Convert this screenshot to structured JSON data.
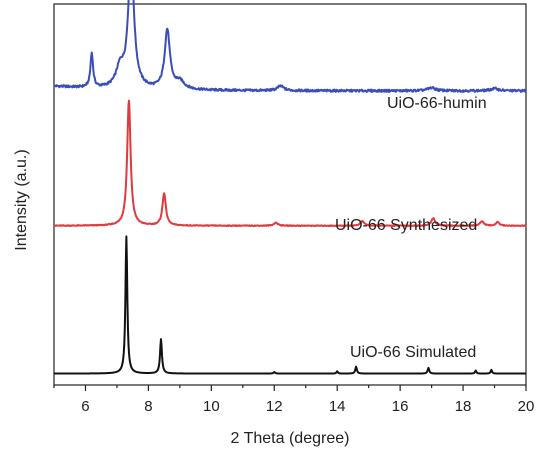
{
  "chart_data": {
    "type": "line",
    "title": "",
    "xlabel": "2 Theta (degree)",
    "ylabel": "Intensity (a.u.)",
    "xlim": [
      5,
      20
    ],
    "x_ticks": [
      "6",
      "8",
      "10",
      "12",
      "14",
      "16",
      "18",
      "20"
    ],
    "y_ticks": "none",
    "grid": false,
    "legend": "none (series labeled inline)",
    "series": [
      {
        "name": "UiO-66-humin",
        "color": "#3a4eb8",
        "baseline": 0.772,
        "peaks": [
          {
            "x": 6.2,
            "h": 0.09,
            "w": 0.1
          },
          {
            "x": 7.1,
            "h": 0.05,
            "w": 0.3
          },
          {
            "x": 7.45,
            "h": 0.34,
            "w": 0.22
          },
          {
            "x": 8.6,
            "h": 0.155,
            "w": 0.2
          },
          {
            "x": 9.0,
            "h": 0.02,
            "w": 0.35
          },
          {
            "x": 12.2,
            "h": 0.012,
            "w": 0.25
          },
          {
            "x": 17.0,
            "h": 0.008,
            "w": 0.3
          },
          {
            "x": 19.0,
            "h": 0.006,
            "w": 0.3
          }
        ]
      },
      {
        "name": "UiO-66 Synthesized",
        "color": "#e03a3e",
        "baseline": 0.418,
        "peaks": [
          {
            "x": 7.38,
            "h": 0.33,
            "w": 0.13
          },
          {
            "x": 8.5,
            "h": 0.085,
            "w": 0.13
          },
          {
            "x": 12.05,
            "h": 0.008,
            "w": 0.15
          },
          {
            "x": 14.8,
            "h": 0.012,
            "w": 0.15
          },
          {
            "x": 17.05,
            "h": 0.02,
            "w": 0.14
          },
          {
            "x": 18.6,
            "h": 0.012,
            "w": 0.14
          },
          {
            "x": 19.1,
            "h": 0.01,
            "w": 0.12
          }
        ]
      },
      {
        "name": "UiO-66 Simulated",
        "color": "#111111",
        "baseline": 0.03,
        "peaks": [
          {
            "x": 7.3,
            "h": 0.36,
            "w": 0.07
          },
          {
            "x": 8.4,
            "h": 0.09,
            "w": 0.07
          },
          {
            "x": 12.0,
            "h": 0.004,
            "w": 0.06
          },
          {
            "x": 14.0,
            "h": 0.006,
            "w": 0.05
          },
          {
            "x": 14.6,
            "h": 0.018,
            "w": 0.06
          },
          {
            "x": 16.9,
            "h": 0.015,
            "w": 0.06
          },
          {
            "x": 18.4,
            "h": 0.008,
            "w": 0.05
          },
          {
            "x": 18.9,
            "h": 0.01,
            "w": 0.05
          }
        ]
      }
    ]
  }
}
